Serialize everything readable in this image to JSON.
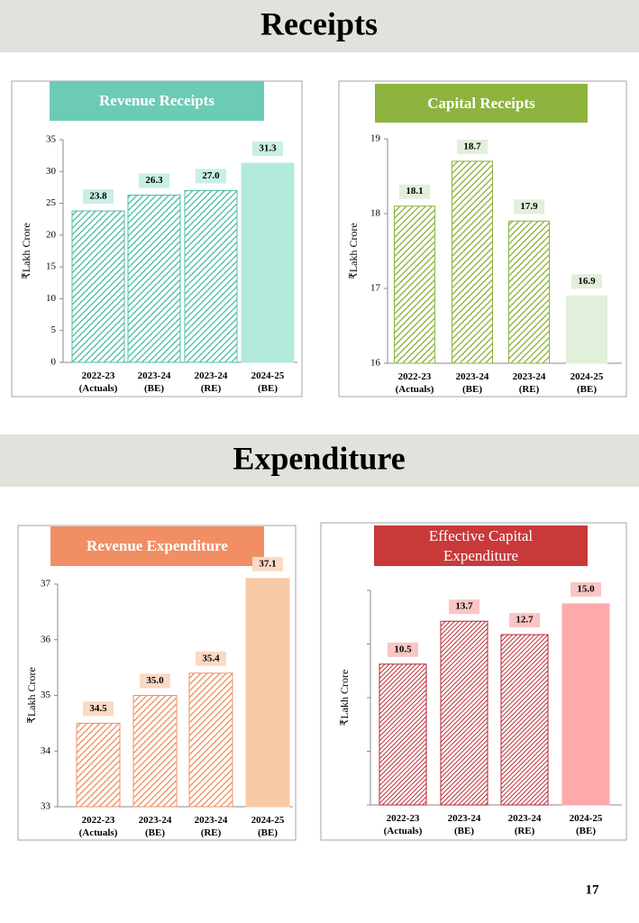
{
  "headings": [
    "Receipts",
    "Expenditure"
  ],
  "page_number": 17,
  "chart_data": [
    {
      "type": "bar",
      "title": "Revenue Receipts",
      "title_color": "#6ccbb5",
      "y_label": "₹Lakh Crore",
      "categories": [
        "2022-23 (Actuals)",
        "2023-24 (BE)",
        "2023-24 (RE)",
        "2024-25 (BE)"
      ],
      "values": [
        23.8,
        26.3,
        27.0,
        31.3
      ],
      "value_labels": [
        "23.8",
        "26.3",
        "27.0",
        "31.3"
      ],
      "colors": [
        "#4fbfa5",
        "#4fbfa5",
        "#4fbfa5",
        "#b3eadc"
      ],
      "hatch": [
        true,
        true,
        true,
        false
      ],
      "label_box_color": "#c8efe5",
      "ylim": [
        0,
        35
      ],
      "yticks": [
        0,
        5,
        10,
        15,
        20,
        25,
        30,
        35
      ],
      "tick_labels": true
    },
    {
      "type": "bar",
      "title": "Capital Receipts",
      "title_color": "#8db33f",
      "y_label": "₹Lakh Crore",
      "categories": [
        "2022-23 (Actuals)",
        "2023-24 (BE)",
        "2023-24 (RE)",
        "2024-25 (BE)"
      ],
      "values": [
        18.1,
        18.7,
        17.9,
        16.9
      ],
      "value_labels": [
        "18.1",
        "18.7",
        "17.9",
        "16.9"
      ],
      "colors": [
        "#8db33f",
        "#8db33f",
        "#8db33f",
        "#e2efda"
      ],
      "hatch": [
        true,
        true,
        true,
        false
      ],
      "label_box_color": "#e2efda",
      "ylim": [
        16,
        19
      ],
      "yticks": [
        16,
        17,
        18,
        19
      ],
      "tick_labels": true
    },
    {
      "type": "bar",
      "title": "Revenue Expenditure",
      "title_color": "#f28e64",
      "y_label": "₹Lakh Crore",
      "categories": [
        "2022-23 (Actuals)",
        "2023-24 (BE)",
        "2023-24 (RE)",
        "2024-25 (BE)"
      ],
      "values": [
        34.5,
        35.0,
        35.4,
        37.1
      ],
      "value_labels": [
        "34.5",
        "35.0",
        "35.4",
        "37.1"
      ],
      "colors": [
        "#ef9263",
        "#ef9263",
        "#ef9263",
        "#f8c9a6"
      ],
      "hatch": [
        true,
        true,
        true,
        false
      ],
      "label_box_color": "#fbd9c4",
      "ylim": [
        33,
        37
      ],
      "yticks": [
        33,
        34,
        35,
        36,
        37
      ],
      "tick_labels": true
    },
    {
      "type": "bar",
      "title": "Effective Capital Expenditure",
      "title_color": "#c9393a",
      "y_label": "₹Lakh Crore",
      "categories": [
        "2022-23 (Actuals)",
        "2023-24 (BE)",
        "2023-24 (RE)",
        "2024-25 (BE)"
      ],
      "values": [
        10.5,
        13.7,
        12.7,
        15.0
      ],
      "value_labels": [
        "10.5",
        "13.7",
        "12.7",
        "15.0"
      ],
      "colors": [
        "#b8262f",
        "#b8262f",
        "#b8262f",
        "#ffaaaa"
      ],
      "hatch": [
        true,
        true,
        true,
        false
      ],
      "label_box_color": "#f9c5c5",
      "ylim": [
        0,
        16
      ],
      "yticks": [
        0,
        4,
        8,
        12,
        16
      ],
      "tick_labels": false
    }
  ]
}
